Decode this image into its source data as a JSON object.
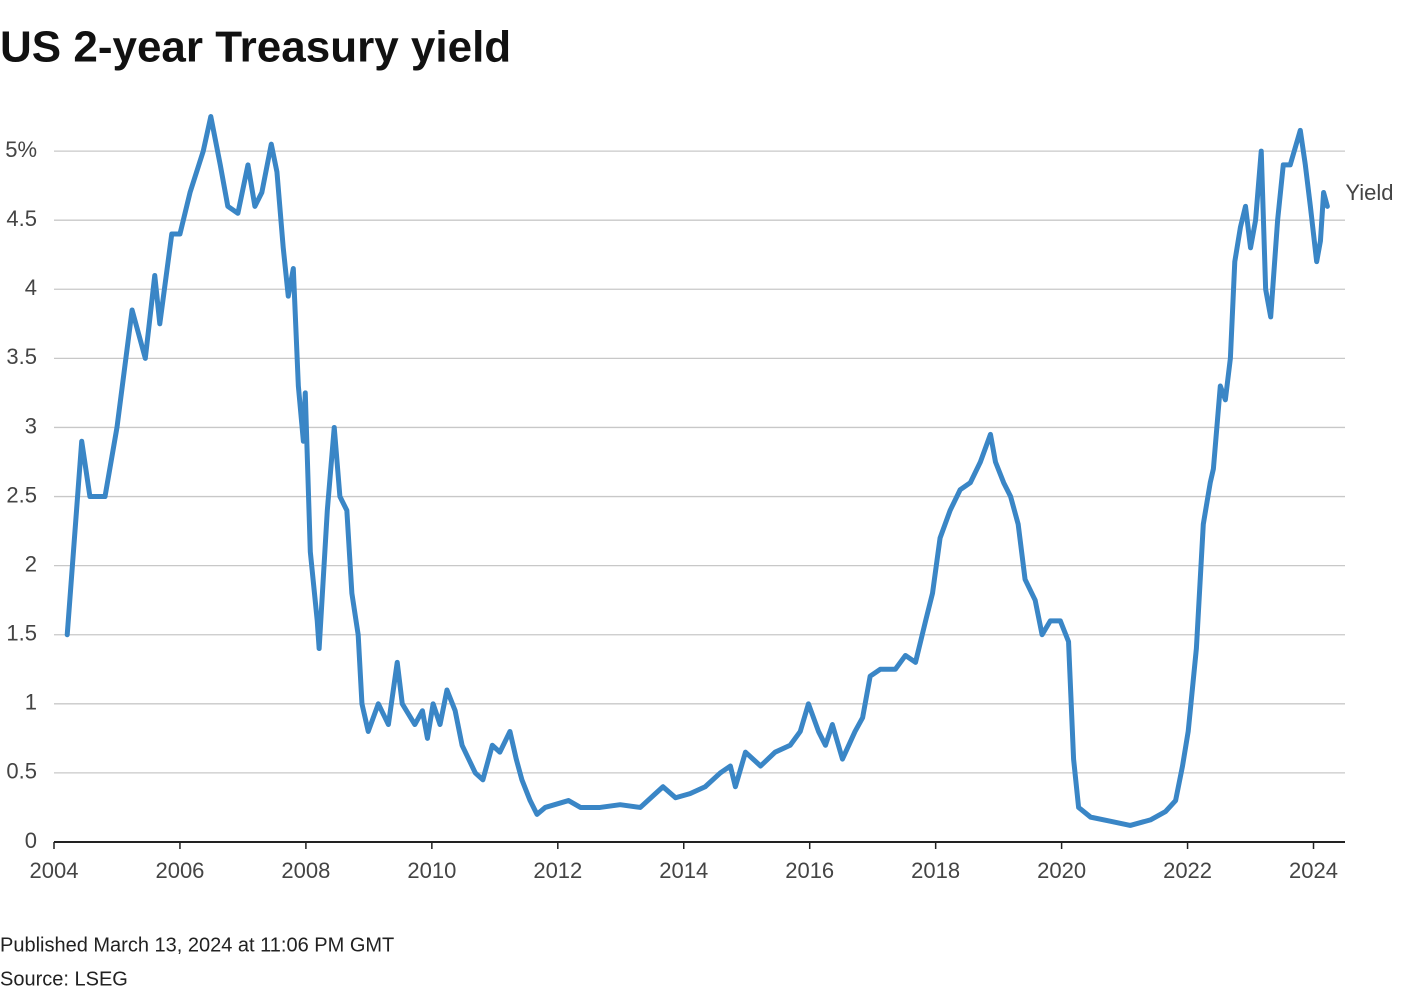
{
  "chart_data": {
    "type": "line",
    "title": "US 2-year Treasury yield",
    "footnotes": [
      "Published March 13, 2024 at 11:06 PM GMT",
      "Source: LSEG"
    ],
    "xlim": [
      2004,
      2024.5
    ],
    "xticks": [
      2004,
      2006,
      2008,
      2010,
      2012,
      2014,
      2016,
      2018,
      2020,
      2022,
      2024
    ],
    "ylim": [
      0,
      5.5
    ],
    "yticks": [
      0,
      0.5,
      1,
      1.5,
      2,
      2.5,
      3,
      3.5,
      4,
      4.5,
      {
        "value": 5,
        "label": "5%"
      }
    ],
    "grid": true,
    "x": [
      2004.21,
      2004.44,
      2004.57,
      2004.81,
      2005.0,
      2005.24,
      2005.45,
      2005.6,
      2005.68,
      2005.87,
      2006.0,
      2006.16,
      2006.37,
      2006.49,
      2006.64,
      2006.76,
      2006.92,
      2007.08,
      2007.19,
      2007.3,
      2007.45,
      2007.54,
      2007.64,
      2007.72,
      2007.8,
      2007.88,
      2007.96,
      2007.99,
      2008.07,
      2008.18,
      2008.21,
      2008.34,
      2008.45,
      2008.54,
      2008.65,
      2008.73,
      2008.83,
      2008.89,
      2008.99,
      2009.15,
      2009.31,
      2009.45,
      2009.53,
      2009.73,
      2009.85,
      2009.93,
      2010.02,
      2010.13,
      2010.24,
      2010.37,
      2010.48,
      2010.69,
      2010.81,
      2010.96,
      2011.08,
      2011.24,
      2011.34,
      2011.43,
      2011.56,
      2011.67,
      2011.8,
      2012.17,
      2012.36,
      2012.67,
      2012.99,
      2013.31,
      2013.55,
      2013.67,
      2013.87,
      2014.1,
      2014.34,
      2014.58,
      2014.74,
      2014.82,
      2014.98,
      2015.22,
      2015.45,
      2015.69,
      2015.85,
      2015.98,
      2016.14,
      2016.25,
      2016.36,
      2016.52,
      2016.72,
      2016.84,
      2016.96,
      2017.12,
      2017.36,
      2017.52,
      2017.68,
      2017.84,
      2017.95,
      2018.07,
      2018.23,
      2018.39,
      2018.55,
      2018.71,
      2018.87,
      2018.95,
      2019.08,
      2019.19,
      2019.31,
      2019.42,
      2019.58,
      2019.69,
      2019.82,
      2019.98,
      2020.11,
      2020.19,
      2020.27,
      2020.46,
      2020.78,
      2021.09,
      2021.41,
      2021.65,
      2021.81,
      2021.92,
      2022.01,
      2022.14,
      2022.25,
      2022.36,
      2022.41,
      2022.52,
      2022.6,
      2022.68,
      2022.75,
      2022.84,
      2022.92,
      2023.0,
      2023.08,
      2023.17,
      2023.24,
      2023.32,
      2023.43,
      2023.52,
      2023.63,
      2023.79,
      2023.87,
      2023.95,
      2024.05,
      2024.11,
      2024.16,
      2024.22
    ],
    "series": [
      {
        "name": "Yield",
        "color": "#3a86c6",
        "values": [
          1.5,
          2.9,
          2.5,
          2.5,
          3.0,
          3.85,
          3.5,
          4.1,
          3.75,
          4.4,
          4.4,
          4.7,
          5.0,
          5.25,
          4.9,
          4.6,
          4.55,
          4.9,
          4.6,
          4.7,
          5.05,
          4.85,
          4.3,
          3.95,
          4.15,
          3.3,
          2.9,
          3.25,
          2.1,
          1.6,
          1.4,
          2.4,
          3.0,
          2.5,
          2.4,
          1.8,
          1.5,
          1.0,
          0.8,
          1.0,
          0.85,
          1.3,
          1.0,
          0.85,
          0.95,
          0.75,
          1.0,
          0.85,
          1.1,
          0.95,
          0.7,
          0.5,
          0.45,
          0.7,
          0.65,
          0.8,
          0.6,
          0.45,
          0.3,
          0.2,
          0.25,
          0.3,
          0.25,
          0.25,
          0.27,
          0.25,
          0.35,
          0.4,
          0.32,
          0.35,
          0.4,
          0.5,
          0.55,
          0.4,
          0.65,
          0.55,
          0.65,
          0.7,
          0.8,
          1.0,
          0.8,
          0.7,
          0.85,
          0.6,
          0.8,
          0.9,
          1.2,
          1.25,
          1.25,
          1.35,
          1.3,
          1.6,
          1.8,
          2.2,
          2.4,
          2.55,
          2.6,
          2.75,
          2.95,
          2.75,
          2.6,
          2.5,
          2.3,
          1.9,
          1.75,
          1.5,
          1.6,
          1.6,
          1.45,
          0.6,
          0.25,
          0.18,
          0.15,
          0.12,
          0.16,
          0.22,
          0.3,
          0.55,
          0.8,
          1.4,
          2.3,
          2.6,
          2.7,
          3.3,
          3.2,
          3.5,
          4.2,
          4.45,
          4.6,
          4.3,
          4.5,
          5.0,
          4.0,
          3.8,
          4.5,
          4.9,
          4.9,
          5.15,
          4.9,
          4.6,
          4.2,
          4.35,
          4.7,
          4.6
        ]
      }
    ]
  }
}
